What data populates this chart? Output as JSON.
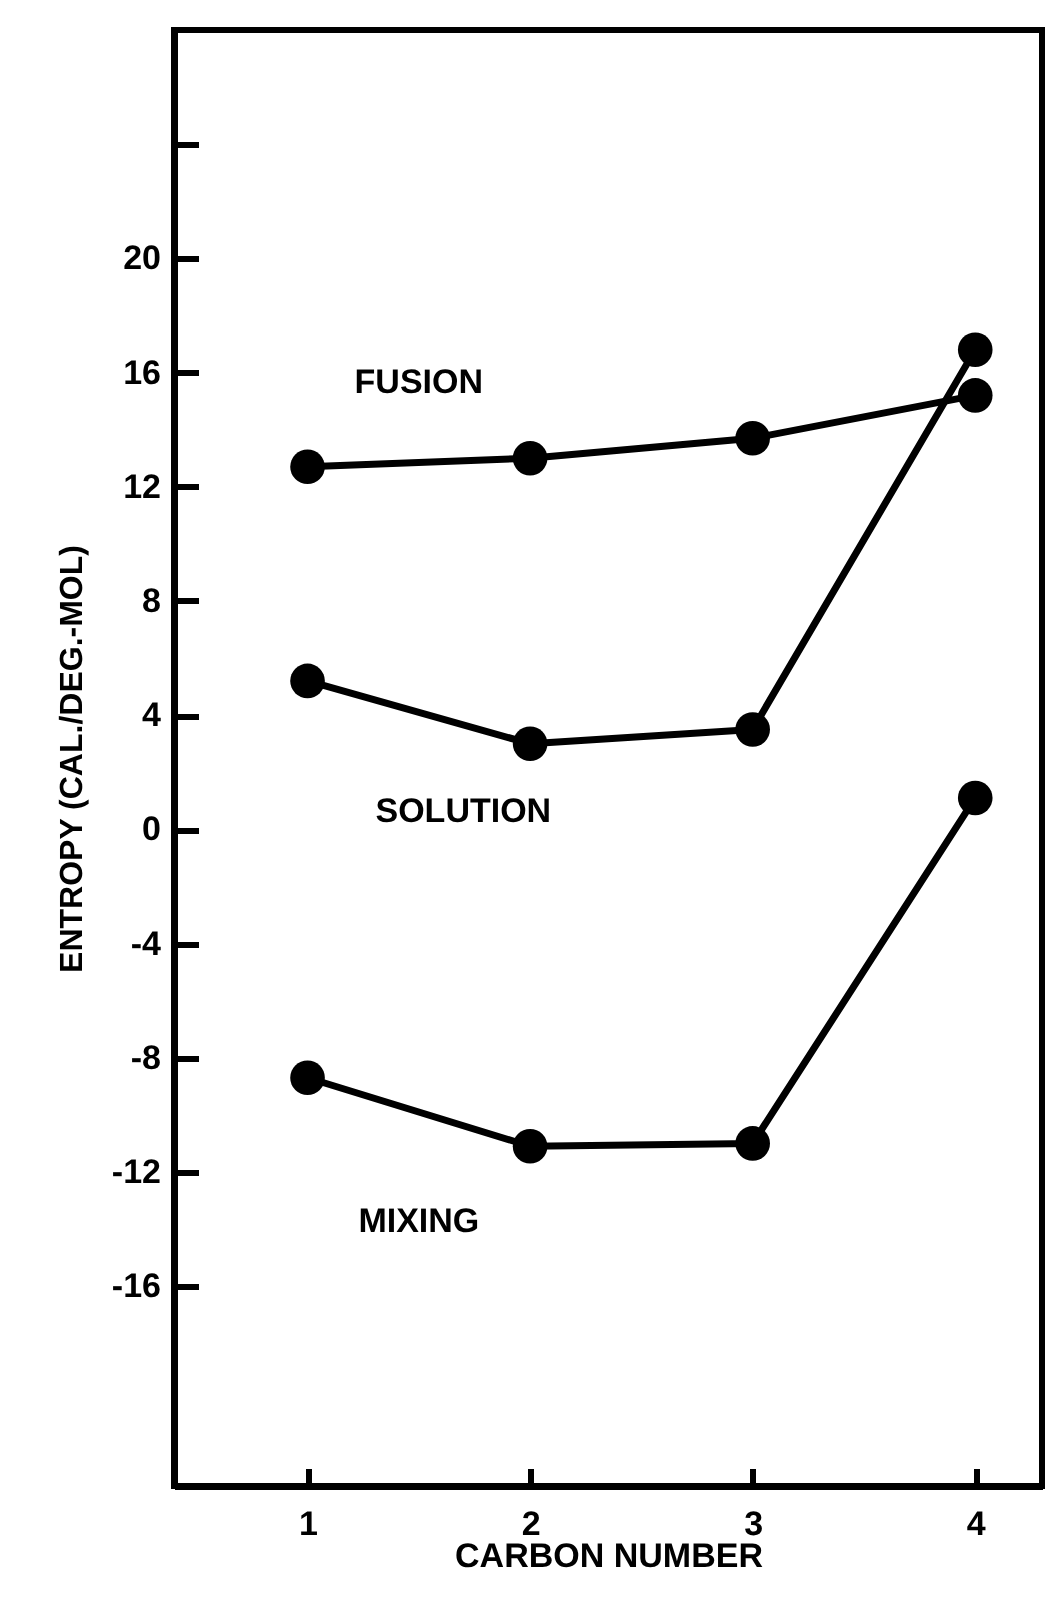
{
  "chart_data": {
    "type": "line",
    "xlabel": "CARBON NUMBER",
    "ylabel": "ENTROPY (CAL./DEG.-MOL)",
    "x": [
      1,
      2,
      3,
      4
    ],
    "series": [
      {
        "name": "FUSION",
        "color": "#000000",
        "values": [
          12.7,
          13.0,
          13.7,
          15.2
        ]
      },
      {
        "name": "SOLUTION",
        "color": "#000000",
        "values": [
          5.2,
          3.0,
          3.5,
          16.8
        ]
      },
      {
        "name": "MIXING",
        "color": "#000000",
        "values": [
          -8.7,
          -11.1,
          -11.0,
          1.1
        ]
      }
    ],
    "xlim": [
      0.4,
      4.3
    ],
    "xticks": [
      1,
      2,
      3,
      4
    ],
    "ylim": [
      -23,
      28
    ],
    "yticks": [
      -16,
      -12,
      -8,
      -4,
      0,
      4,
      8,
      12,
      16,
      20,
      {
        "value": 24,
        "label": null
      }
    ],
    "grid": false,
    "marker": "circle",
    "line_style": "solid"
  }
}
